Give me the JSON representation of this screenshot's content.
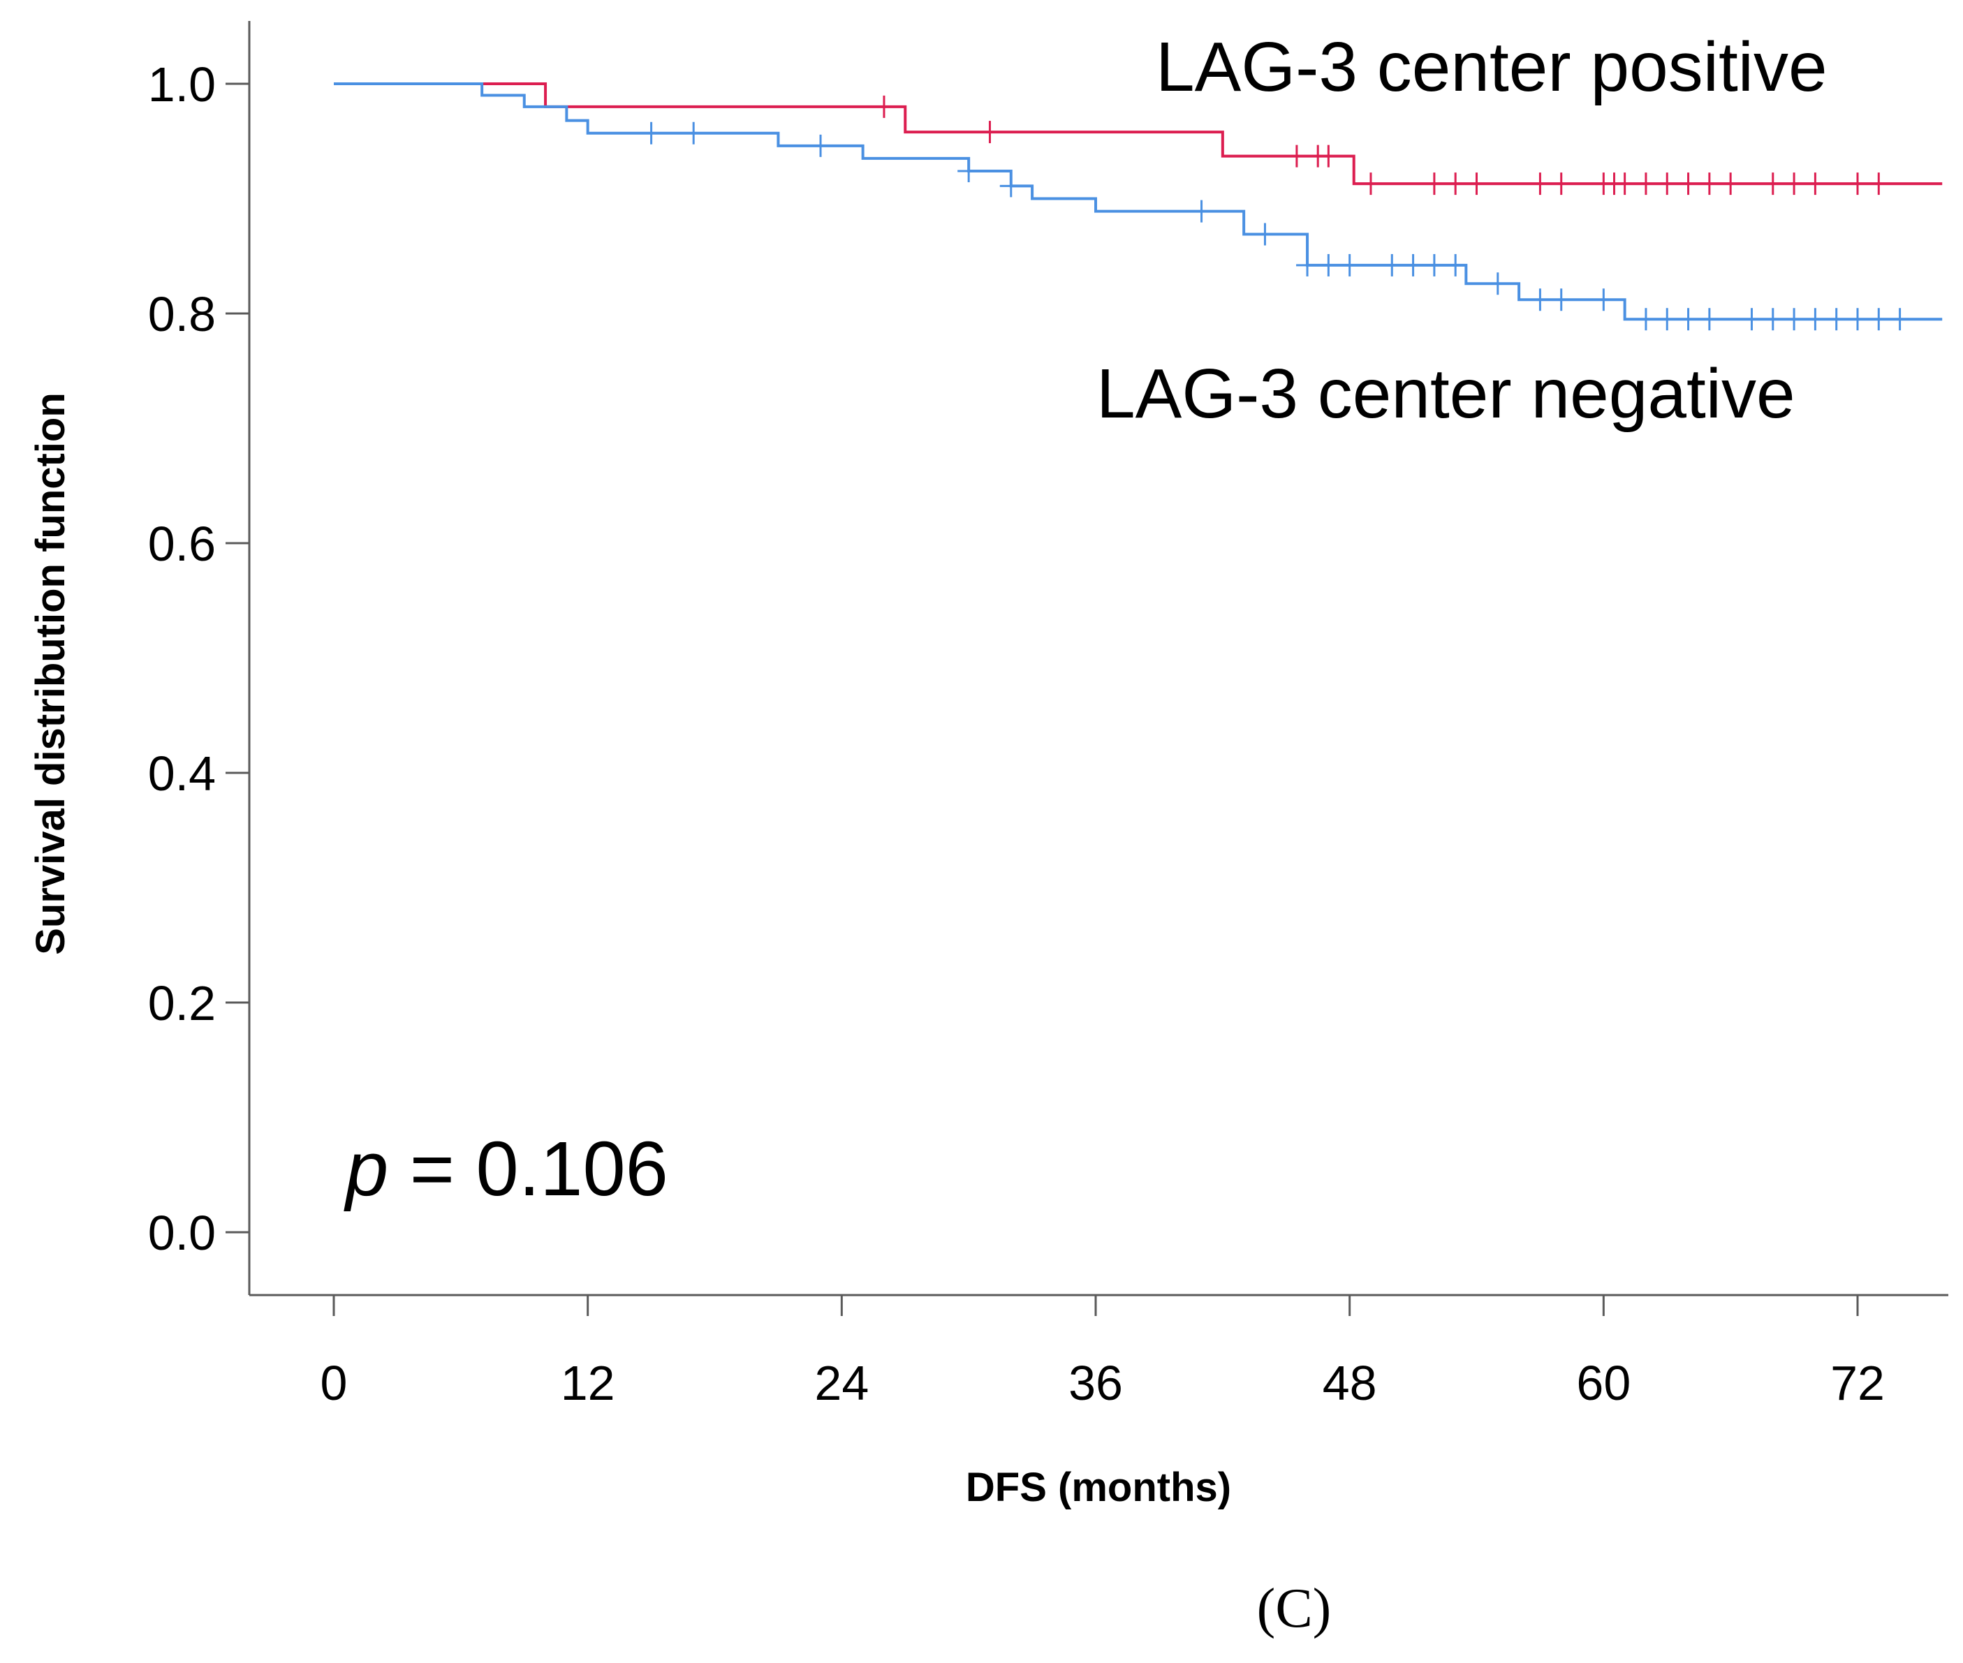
{
  "chart_data": {
    "type": "line",
    "subtype": "kaplan-meier-step",
    "xlabel": "DFS (months)",
    "ylabel": "Survival distribution function",
    "xlim": [
      -4,
      76
    ],
    "ylim": [
      -0.09,
      1.09
    ],
    "x_ticks": [
      0,
      12,
      24,
      36,
      48,
      60,
      72
    ],
    "x_tick_labels": [
      "0",
      "12",
      "24",
      "36",
      "48",
      "60",
      "72"
    ],
    "y_ticks": [
      0.0,
      0.2,
      0.4,
      0.6,
      0.8,
      1.0
    ],
    "y_tick_labels": [
      "0.0",
      "0.2",
      "0.4",
      "0.6",
      "0.8",
      "1.0"
    ],
    "series": [
      {
        "name": "LAG-3 center positive",
        "color": "#dc1e50",
        "steps": [
          [
            0,
            1.0
          ],
          [
            10,
            0.98
          ],
          [
            27,
            0.958
          ],
          [
            42,
            0.937
          ],
          [
            48.2,
            0.913
          ]
        ],
        "end_x": 76,
        "censor_times": [
          26,
          31,
          45.5,
          46.5,
          47,
          49,
          52,
          53,
          54,
          57,
          58,
          60,
          60.5,
          61,
          62,
          63,
          64,
          65,
          66,
          68,
          69,
          70,
          72,
          73
        ]
      },
      {
        "name": "LAG-3 center negative",
        "color": "#4a90e2",
        "steps": [
          [
            0,
            1.0
          ],
          [
            7,
            0.99
          ],
          [
            9,
            0.98
          ],
          [
            11,
            0.968
          ],
          [
            12,
            0.957
          ],
          [
            21,
            0.946
          ],
          [
            25,
            0.935
          ],
          [
            30,
            0.924
          ],
          [
            32,
            0.911
          ],
          [
            33,
            0.9
          ],
          [
            36,
            0.889
          ],
          [
            43,
            0.869
          ],
          [
            46,
            0.842
          ],
          [
            53.5,
            0.826
          ],
          [
            56,
            0.812
          ],
          [
            61,
            0.795
          ]
        ],
        "end_x": 76,
        "censor_times": [
          15,
          17,
          23,
          30,
          32,
          41,
          44,
          46,
          47,
          48,
          50,
          51,
          52,
          53,
          55,
          57,
          58,
          60,
          62,
          63,
          64,
          65,
          67,
          68,
          69,
          70,
          71,
          72,
          73,
          74
        ]
      }
    ],
    "annotations": {
      "positive_label": "LAG-3 center positive",
      "negative_label": "LAG-3 center negative",
      "p_symbol": "p",
      "p_text": " = 0.106"
    },
    "panel_label": "(C)"
  }
}
